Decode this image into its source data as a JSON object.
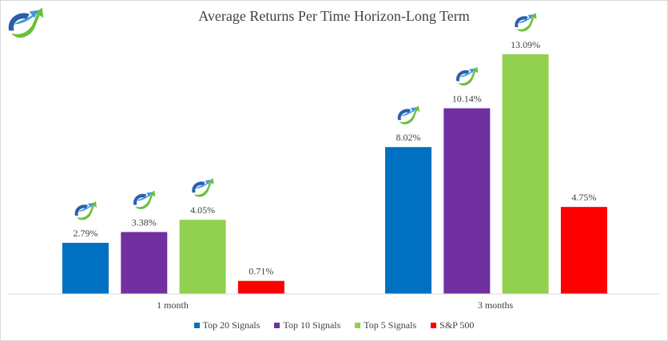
{
  "chart_data": {
    "type": "bar",
    "title": "Average Returns Per Time Horizon-Long Term",
    "categories": [
      "1 month",
      "3 months"
    ],
    "series": [
      {
        "name": "Top 20 Signals",
        "color": "#0070c0",
        "values": [
          2.79,
          8.02
        ],
        "labels": [
          "2.79%",
          "8.02%"
        ]
      },
      {
        "name": "Top 10 Signals",
        "color": "#7030a0",
        "values": [
          3.38,
          10.14
        ],
        "labels": [
          "3.38%",
          "10.14%"
        ]
      },
      {
        "name": "Top 5 Signals",
        "color": "#92d050",
        "values": [
          4.05,
          13.09
        ],
        "labels": [
          "4.05%",
          "13.09%"
        ]
      },
      {
        "name": "S&P 500",
        "color": "#ff0000",
        "values": [
          0.71,
          4.75
        ],
        "labels": [
          "0.71%",
          "4.75%"
        ]
      }
    ],
    "xlabel": "",
    "ylabel": "",
    "ylim": [
      0,
      14.5
    ],
    "grid": false,
    "legend": "bottom"
  }
}
